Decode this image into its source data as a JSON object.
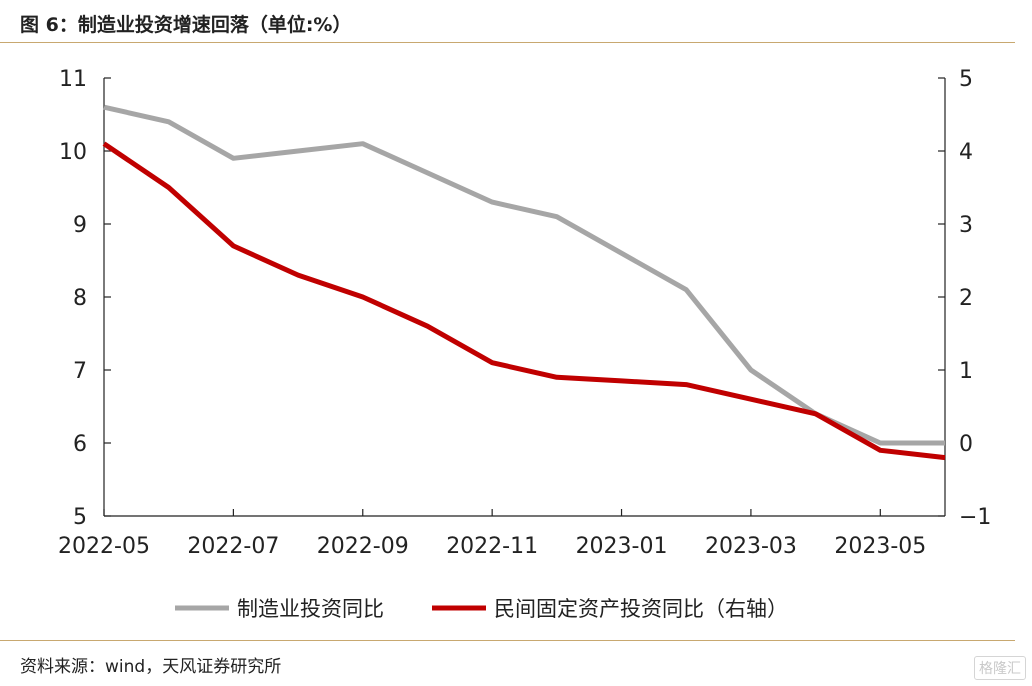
{
  "title": "图 6：制造业投资增速回落（单位:%）",
  "source": "资料来源：wind，天风证券研究所",
  "watermark": "格隆汇",
  "colors": {
    "grey_series": "#a6a6a6",
    "red_series": "#c00000",
    "axis": "#222222",
    "rule": "#c8a870"
  },
  "chart_data": {
    "type": "line",
    "x": [
      "2022-05",
      "2022-06",
      "2022-07",
      "2022-08",
      "2022-09",
      "2022-10",
      "2022-11",
      "2022-12",
      "2023-01",
      "2023-02",
      "2023-03",
      "2023-04",
      "2023-05",
      "2023-06"
    ],
    "xticks": [
      "2022-05",
      "2022-07",
      "2022-09",
      "2022-11",
      "2023-01",
      "2023-03",
      "2023-05"
    ],
    "y_left": {
      "ylim": [
        5,
        11
      ],
      "ticks": [
        "5",
        "6",
        "7",
        "8",
        "9",
        "10",
        "11"
      ]
    },
    "y_right": {
      "ylim": [
        -1,
        5
      ],
      "ticks": [
        "−1",
        "0",
        "1",
        "2",
        "3",
        "4",
        "5"
      ]
    },
    "grid": false,
    "legend_position": "bottom",
    "series": [
      {
        "name": "制造业投资同比",
        "axis": "left",
        "values": [
          10.6,
          10.4,
          9.9,
          10.0,
          10.1,
          9.7,
          9.3,
          9.1,
          8.6,
          8.1,
          7.0,
          6.4,
          6.0,
          6.0
        ]
      },
      {
        "name": "民间固定资产投资同比（右轴）",
        "axis": "right",
        "values": [
          4.1,
          3.5,
          2.7,
          2.3,
          2.0,
          1.6,
          1.1,
          0.9,
          0.85,
          0.8,
          0.6,
          0.4,
          -0.1,
          -0.2
        ]
      }
    ]
  }
}
